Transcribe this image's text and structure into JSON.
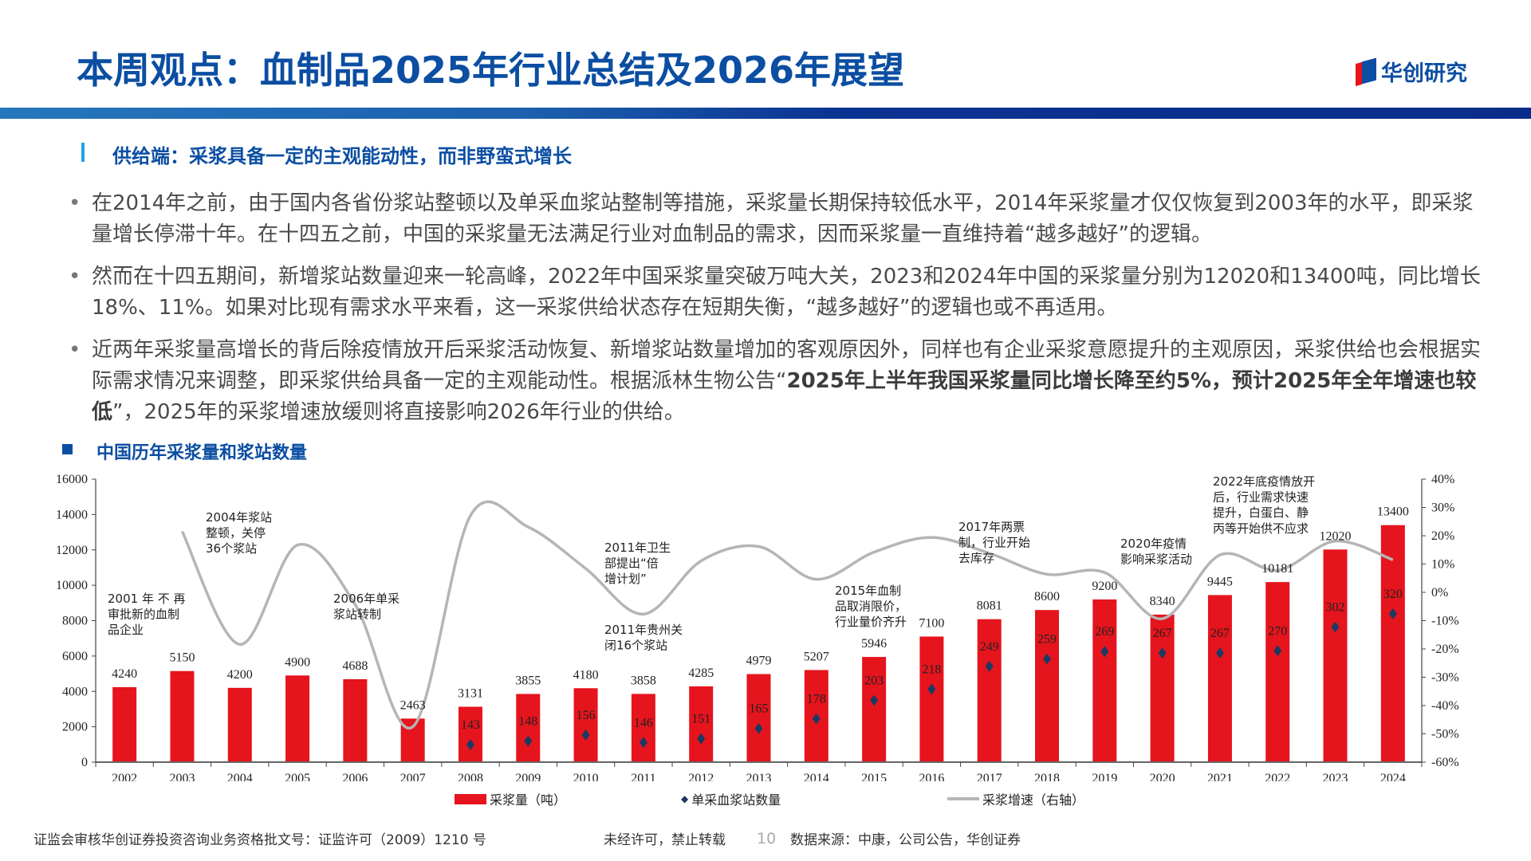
{
  "header": {
    "title": "本周观点：血制品2025年行业总结及2026年展望",
    "logo_text": "华创研究"
  },
  "section": {
    "subtitle": "供给端：采浆具备一定的主观能动性，而非野蛮式增长"
  },
  "bullets": [
    [
      {
        "text": "在2014年之前，由于国内各省份浆站整顿以及单采血浆站整制等措施，采浆量长期保持较低水平，2014年采浆量才仅仅恢复到2003年的水平，即采浆量增长停滞十年。在十四五之前，中国的采浆量无法满足行业对血制品的需求，因而采浆量一直维持着“越多越好”的逻辑。",
        "bold": false
      }
    ],
    [
      {
        "text": "然而在十四五期间，新增浆站数量迎来一轮高峰，2022年中国采浆量突破万吨大关，2023和2024年中国的采浆量分别为12020和13400吨，同比增长18%、11%。如果对比现有需求水平来看，这一采浆供给状态存在短期失衡，“越多越好”的逻辑也或不再适用。",
        "bold": false
      }
    ],
    [
      {
        "text": "近两年采浆量高增长的背后除疫情放开后采浆活动恢复、新增浆站数量增加的客观原因外，同样也有企业采浆意愿提升的主观原因，采浆供给也会根据实际需求情况来调整，即采浆供给具备一定的主观能动性。根据派林生物公告“",
        "bold": false
      },
      {
        "text": "2025年上半年我国采浆量同比增长降至约5%，预计2025年全年增速也较低",
        "bold": true
      },
      {
        "text": "”，2025年的采浆增速放缓则将直接影响2026年行业的供给。",
        "bold": false
      }
    ]
  ],
  "chart_data": {
    "type": "bar+line",
    "title": "中国历年采浆量和浆站数量",
    "categories": [
      "2002",
      "2003",
      "2004",
      "2005",
      "2006",
      "2007",
      "2008",
      "2009",
      "2010",
      "2011",
      "2012",
      "2013",
      "2014",
      "2015",
      "2016",
      "2017",
      "2018",
      "2019",
      "2020",
      "2021",
      "2022",
      "2023",
      "2024"
    ],
    "series": [
      {
        "name": "采浆量（吨）",
        "type": "bar",
        "axis": "left",
        "color": "#e5141d",
        "values": [
          4240,
          5150,
          4200,
          4900,
          4688,
          2463,
          3131,
          3855,
          4180,
          3858,
          4285,
          4979,
          5207,
          5946,
          7100,
          8081,
          8600,
          9200,
          8340,
          9445,
          10181,
          12020,
          13400
        ]
      },
      {
        "name": "单采血浆站数量",
        "type": "scatter",
        "marker": "diamond",
        "color": "#1b3a63",
        "values": [
          null,
          null,
          null,
          null,
          null,
          null,
          143,
          148,
          156,
          146,
          151,
          165,
          178,
          203,
          218,
          249,
          259,
          269,
          267,
          267,
          270,
          302,
          320
        ]
      },
      {
        "name": "采浆增速（右轴）",
        "type": "line",
        "axis": "right",
        "color": "#b5b5b5",
        "values": [
          null,
          21.5,
          -18.4,
          16.7,
          -4.3,
          -47.5,
          27.1,
          23.1,
          8.4,
          -7.7,
          11.1,
          16.2,
          4.6,
          14.2,
          19.4,
          13.8,
          6.4,
          7.0,
          -9.3,
          13.2,
          7.8,
          18.1,
          11.5
        ]
      }
    ],
    "left_axis": {
      "min": 0,
      "max": 16000,
      "ticks": [
        "0",
        "2000",
        "4000",
        "6000",
        "8000",
        "10000",
        "12000",
        "14000",
        "16000"
      ]
    },
    "right_axis": {
      "min": -60,
      "max": 40,
      "ticks": [
        "-60%",
        "-50%",
        "-40%",
        "-30%",
        "-20%",
        "-10%",
        "0%",
        "10%",
        "20%",
        "30%",
        "40%"
      ]
    },
    "grid": false,
    "legend": "bottom",
    "annotations": [
      {
        "lines": [
          "2001 年 不 再",
          "审批新的血制",
          "品企业"
        ]
      },
      {
        "lines": [
          "2004年浆站",
          "整顿，关停",
          "36个浆站"
        ]
      },
      {
        "lines": [
          "2006年单采",
          "浆站转制"
        ]
      },
      {
        "lines": [
          "2011年卫生",
          "部提出“倍",
          "增计划”"
        ]
      },
      {
        "lines": [
          "2011年贵州关",
          "闭16个浆站"
        ]
      },
      {
        "lines": [
          "2015年血制",
          "品取消限价，",
          "行业量价齐升"
        ]
      },
      {
        "lines": [
          "2017年两票",
          "制，行业开始",
          "去库存"
        ]
      },
      {
        "lines": [
          "2020年疫情",
          "影响采浆活动"
        ]
      },
      {
        "lines": [
          "2022年底疫情放开",
          "后，行业需求快速",
          "提升，白蛋白、静",
          "丙等开始供不应求"
        ]
      }
    ]
  },
  "footer": {
    "license": "证监会审核华创证券投资咨询业务资格批文号：证监许可（2009）1210 号",
    "notice": "未经许可，禁止转载",
    "page": "10",
    "source": "数据来源：中康，公司公告，华创证券"
  }
}
